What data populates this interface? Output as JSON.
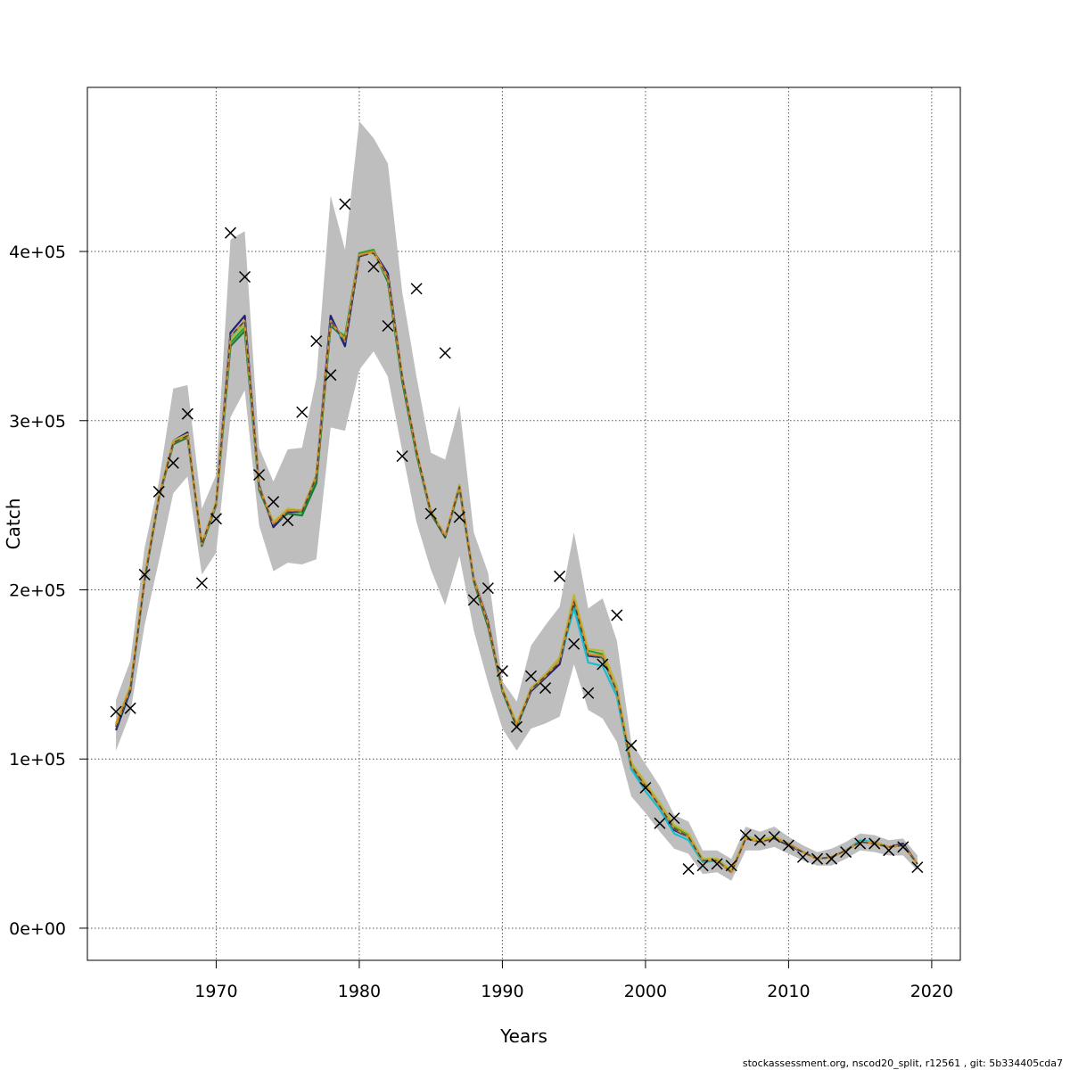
{
  "footer_text": "stockassessment.org, nscod20_split, r12561 , git: 5b334405cda7",
  "chart_data": {
    "type": "line",
    "title": "",
    "xlabel": "Years",
    "ylabel": "Catch",
    "xlim": [
      1961,
      2022
    ],
    "ylim": [
      -19000,
      497000
    ],
    "grid": true,
    "x_ticks": [
      1970,
      1980,
      1990,
      2000,
      2010,
      2020
    ],
    "x_tick_labels": [
      "1970",
      "1980",
      "1990",
      "2000",
      "2010",
      "2020"
    ],
    "y_ticks": [
      0,
      100000,
      200000,
      300000,
      400000
    ],
    "y_tick_labels": [
      "0e+00",
      "1e+05",
      "2e+05",
      "3e+05",
      "4e+05"
    ],
    "band_color": "#bebebe",
    "years": [
      1963,
      1964,
      1965,
      1966,
      1967,
      1968,
      1969,
      1970,
      1971,
      1972,
      1973,
      1974,
      1975,
      1976,
      1977,
      1978,
      1979,
      1980,
      1981,
      1982,
      1983,
      1984,
      1985,
      1986,
      1987,
      1988,
      1989,
      1990,
      1991,
      1992,
      1993,
      1994,
      1995,
      1996,
      1997,
      1998,
      1999,
      2000,
      2001,
      2002,
      2003,
      2004,
      2005,
      2006,
      2007,
      2008,
      2009,
      2010,
      2011,
      2012,
      2013,
      2014,
      2015,
      2016,
      2017,
      2018,
      2019
    ],
    "band_upper": [
      135000,
      158000,
      225000,
      264000,
      319000,
      321000,
      248000,
      268000,
      407000,
      412000,
      284000,
      264000,
      283000,
      284000,
      325000,
      433000,
      401000,
      477000,
      467000,
      452000,
      376000,
      326000,
      281000,
      277000,
      309000,
      234000,
      210000,
      146000,
      134000,
      167000,
      179000,
      190000,
      234000,
      189000,
      195000,
      170000,
      110000,
      97000,
      84000,
      67000,
      63000,
      46000,
      46000,
      41000,
      60000,
      57000,
      60000,
      54000,
      49000,
      45000,
      47000,
      51000,
      56000,
      55000,
      52000,
      53000,
      43000
    ],
    "band_lower": [
      105000,
      127000,
      179000,
      217000,
      257000,
      267000,
      209000,
      222000,
      302000,
      318000,
      238000,
      211000,
      216000,
      215000,
      218000,
      296000,
      294000,
      330000,
      341000,
      326000,
      282000,
      240000,
      212000,
      191000,
      220000,
      176000,
      145000,
      118000,
      105000,
      118000,
      121000,
      125000,
      156000,
      129000,
      124000,
      110000,
      78000,
      68000,
      57000,
      47000,
      44000,
      32000,
      33000,
      28000,
      46000,
      46000,
      48000,
      44000,
      40000,
      37000,
      37000,
      41000,
      46000,
      45000,
      43000,
      43000,
      34000
    ],
    "series": [
      {
        "color": "#1f1f7a",
        "values": [
          117000,
          140000,
          206000,
          254000,
          288000,
          293000,
          226000,
          252000,
          352000,
          362000,
          262000,
          237000,
          246000,
          246000,
          268000,
          362000,
          344000,
          397000,
          400000,
          387000,
          326000,
          282000,
          246000,
          231000,
          262000,
          207000,
          181000,
          141000,
          119000,
          140000,
          148000,
          156000,
          192000,
          161000,
          160000,
          140000,
          95000,
          84000,
          72000,
          58000,
          54000,
          40000,
          40000,
          33000,
          53000,
          51000,
          53000,
          49000,
          45000,
          41000,
          42000,
          46000,
          51000,
          50000,
          48000,
          50000,
          38000
        ]
      },
      {
        "color": "#17becf",
        "values": [
          119000,
          141000,
          206000,
          255000,
          287000,
          291000,
          227000,
          251000,
          349000,
          358000,
          260000,
          239000,
          247000,
          246000,
          266000,
          357000,
          347000,
          399000,
          400000,
          384000,
          325000,
          281000,
          246000,
          232000,
          261000,
          206000,
          179000,
          141000,
          119000,
          141000,
          149000,
          158000,
          189000,
          157000,
          155000,
          137000,
          94000,
          81000,
          70000,
          56000,
          52000,
          39000,
          40000,
          33000,
          53000,
          51000,
          54000,
          50000,
          45000,
          41000,
          42000,
          46000,
          52000,
          51000,
          48000,
          49000,
          38000
        ]
      },
      {
        "color": "#2ca02c",
        "values": [
          120000,
          142000,
          207000,
          255000,
          287000,
          291000,
          227000,
          251000,
          346000,
          355000,
          260000,
          240000,
          247000,
          246000,
          265000,
          356000,
          350000,
          399000,
          401000,
          383000,
          324000,
          281000,
          246000,
          232000,
          261000,
          206000,
          179000,
          141000,
          120000,
          142000,
          150000,
          160000,
          195000,
          164000,
          162000,
          142000,
          97000,
          85000,
          74000,
          60000,
          55000,
          41000,
          41000,
          34000,
          54000,
          52000,
          54000,
          50000,
          45000,
          41000,
          42000,
          46000,
          51000,
          51000,
          48000,
          49000,
          38000
        ]
      },
      {
        "color": "#1a7a3a",
        "values": [
          119000,
          141000,
          206000,
          254000,
          286000,
          290000,
          226000,
          250000,
          344000,
          353000,
          259000,
          239000,
          245000,
          244000,
          263000,
          356000,
          349000,
          398000,
          400000,
          382000,
          323000,
          280000,
          245000,
          231000,
          260000,
          205000,
          178000,
          140000,
          119000,
          141000,
          149000,
          158000,
          193000,
          162000,
          160000,
          140000,
          96000,
          84000,
          73000,
          59000,
          54000,
          40000,
          40000,
          33000,
          54000,
          52000,
          54000,
          50000,
          45000,
          41000,
          42000,
          46000,
          51000,
          51000,
          48000,
          49000,
          38000
        ]
      },
      {
        "color": "#b8b83a",
        "values": [
          121000,
          143000,
          208000,
          256000,
          288000,
          292000,
          228000,
          252000,
          348000,
          357000,
          261000,
          240000,
          248000,
          247000,
          268000,
          358000,
          348000,
          398000,
          399000,
          384000,
          326000,
          282000,
          247000,
          232000,
          262000,
          207000,
          180000,
          142000,
          121000,
          142000,
          150000,
          160000,
          197000,
          165000,
          164000,
          143000,
          98000,
          86000,
          74000,
          61000,
          56000,
          41000,
          41000,
          34000,
          54000,
          52000,
          54000,
          50000,
          45000,
          41000,
          42000,
          46000,
          51000,
          51000,
          48000,
          49000,
          38000
        ]
      },
      {
        "color": "#d98a2b",
        "values": [
          120000,
          142000,
          207000,
          255000,
          287000,
          291000,
          227000,
          251000,
          350000,
          359000,
          261000,
          239000,
          247000,
          247000,
          267000,
          359000,
          347000,
          398000,
          400000,
          385000,
          326000,
          282000,
          246000,
          232000,
          261000,
          206000,
          180000,
          141000,
          120000,
          141000,
          149000,
          158000,
          194000,
          162000,
          161000,
          140000,
          96000,
          84000,
          72000,
          59000,
          54000,
          40000,
          40000,
          33000,
          53000,
          51000,
          53000,
          50000,
          45000,
          41000,
          42000,
          46000,
          51000,
          50000,
          48000,
          49000,
          38000
        ]
      },
      {
        "color": "#444444",
        "dash": true,
        "values": [
          118000,
          141000,
          206000,
          255000,
          287000,
          291000,
          227000,
          251000,
          350000,
          359000,
          261000,
          238000,
          246000,
          246000,
          267000,
          359000,
          346000,
          397000,
          399000,
          385000,
          326000,
          282000,
          246000,
          231000,
          261000,
          206000,
          180000,
          141000,
          119000,
          141000,
          149000,
          157000,
          193000,
          161000,
          160000,
          140000,
          96000,
          84000,
          72000,
          59000,
          54000,
          40000,
          40000,
          33000,
          53000,
          51000,
          53000,
          49000,
          45000,
          41000,
          42000,
          46000,
          51000,
          50000,
          48000,
          49000,
          38000
        ]
      }
    ],
    "observed": {
      "marker": "x",
      "x": [
        1963,
        1964,
        1965,
        1966,
        1967,
        1968,
        1969,
        1970,
        1971,
        1972,
        1973,
        1974,
        1975,
        1976,
        1977,
        1978,
        1979,
        1981,
        1982,
        1983,
        1984,
        1985,
        1986,
        1987,
        1988,
        1989,
        1990,
        1991,
        1992,
        1993,
        1994,
        1995,
        1996,
        1997,
        1998,
        1999,
        2000,
        2001,
        2002,
        2003,
        2004,
        2005,
        2006,
        2007,
        2008,
        2009,
        2010,
        2011,
        2012,
        2013,
        2014,
        2015,
        2016,
        2017,
        2018,
        2019
      ],
      "y": [
        128000,
        130000,
        209000,
        258000,
        275000,
        304000,
        204000,
        242000,
        411000,
        385000,
        268000,
        252000,
        241000,
        305000,
        347000,
        327000,
        428000,
        391000,
        356000,
        279000,
        378000,
        245000,
        340000,
        243000,
        194000,
        201000,
        152000,
        119000,
        149000,
        142000,
        208000,
        168000,
        139000,
        156000,
        185000,
        108000,
        83000,
        62000,
        65000,
        35000,
        37000,
        38000,
        37000,
        55000,
        52000,
        54000,
        49000,
        42000,
        41000,
        41000,
        45000,
        50000,
        50000,
        46000,
        48000,
        36000
      ]
    }
  }
}
